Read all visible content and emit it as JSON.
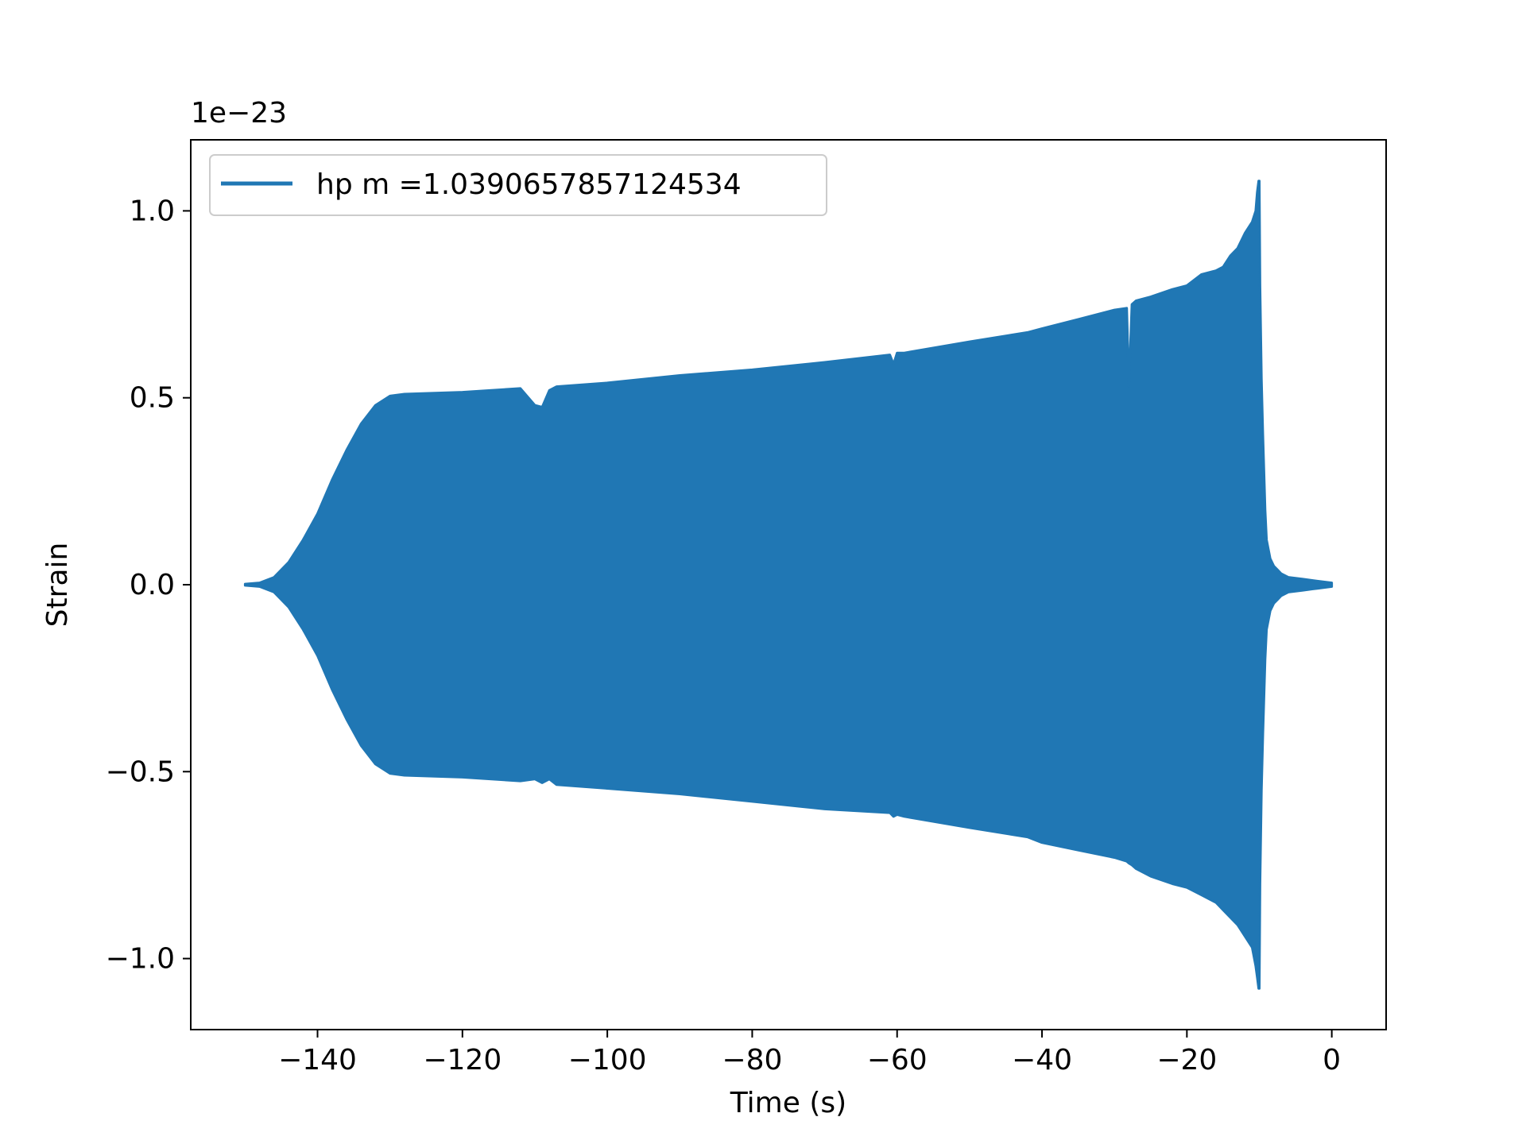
{
  "chart_data": {
    "type": "line",
    "title": "",
    "xlabel": "Time (s)",
    "ylabel": "Strain",
    "offset_label": "1e−23",
    "xlim": [
      -157.5,
      7.5
    ],
    "ylim": [
      -1.19,
      1.19
    ],
    "xticks": [
      -140,
      -120,
      -100,
      -80,
      -60,
      -40,
      -20,
      0
    ],
    "xtick_labels": [
      "−140",
      "−120",
      "−100",
      "−80",
      "−60",
      "−40",
      "−20",
      "0"
    ],
    "yticks": [
      -1.0,
      -0.5,
      0.0,
      0.5,
      1.0
    ],
    "ytick_labels": [
      "−1.0",
      "−0.5",
      "0.0",
      "0.5",
      "1.0"
    ],
    "grid": false,
    "legend_position": "upper-left",
    "series": [
      {
        "name": "hp m =1.0390657857124534",
        "color": "#2077b4",
        "style": "dense oscillation shown as filled band between upper and lower envelope",
        "envelope": {
          "x": [
            -150,
            -148,
            -146,
            -144,
            -142,
            -140,
            -138,
            -136,
            -134,
            -132,
            -130,
            -128,
            -120,
            -112,
            -110,
            -109,
            -108,
            -107,
            -100,
            -90,
            -80,
            -70,
            -61,
            -60.5,
            -60,
            -59,
            -50,
            -42,
            -40,
            -35,
            -30,
            -28.3,
            -28,
            -27.6,
            -27,
            -25,
            -22,
            -20,
            -18,
            -16,
            -15,
            -14,
            -13,
            -12,
            -11,
            -10.5,
            -10.3,
            -10.1,
            -10,
            -9.9,
            -9.7,
            -9.5,
            -9.2,
            -9,
            -8.5,
            -8,
            -7.5,
            -7,
            -6,
            -4,
            -2,
            0
          ],
          "upper": [
            0.002,
            0.005,
            0.02,
            0.06,
            0.12,
            0.19,
            0.28,
            0.36,
            0.43,
            0.48,
            0.505,
            0.51,
            0.515,
            0.525,
            0.48,
            0.475,
            0.52,
            0.53,
            0.54,
            0.56,
            0.575,
            0.595,
            0.615,
            0.59,
            0.62,
            0.62,
            0.65,
            0.675,
            0.685,
            0.71,
            0.735,
            0.74,
            0.53,
            0.75,
            0.76,
            0.77,
            0.79,
            0.8,
            0.83,
            0.84,
            0.85,
            0.88,
            0.9,
            0.94,
            0.97,
            1.0,
            1.05,
            1.08,
            1.08,
            0.8,
            0.55,
            0.4,
            0.2,
            0.12,
            0.07,
            0.05,
            0.04,
            0.03,
            0.02,
            0.015,
            0.01,
            0.005
          ],
          "lower": [
            -0.002,
            -0.005,
            -0.02,
            -0.06,
            -0.12,
            -0.19,
            -0.28,
            -0.36,
            -0.43,
            -0.48,
            -0.505,
            -0.51,
            -0.515,
            -0.525,
            -0.52,
            -0.53,
            -0.52,
            -0.535,
            -0.545,
            -0.56,
            -0.58,
            -0.6,
            -0.61,
            -0.62,
            -0.615,
            -0.62,
            -0.65,
            -0.675,
            -0.69,
            -0.71,
            -0.73,
            -0.74,
            -0.745,
            -0.75,
            -0.76,
            -0.78,
            -0.8,
            -0.81,
            -0.83,
            -0.85,
            -0.87,
            -0.89,
            -0.91,
            -0.94,
            -0.97,
            -1.02,
            -1.05,
            -1.08,
            -1.08,
            -0.8,
            -0.55,
            -0.4,
            -0.2,
            -0.12,
            -0.07,
            -0.05,
            -0.04,
            -0.03,
            -0.02,
            -0.015,
            -0.01,
            -0.005
          ]
        }
      }
    ]
  }
}
